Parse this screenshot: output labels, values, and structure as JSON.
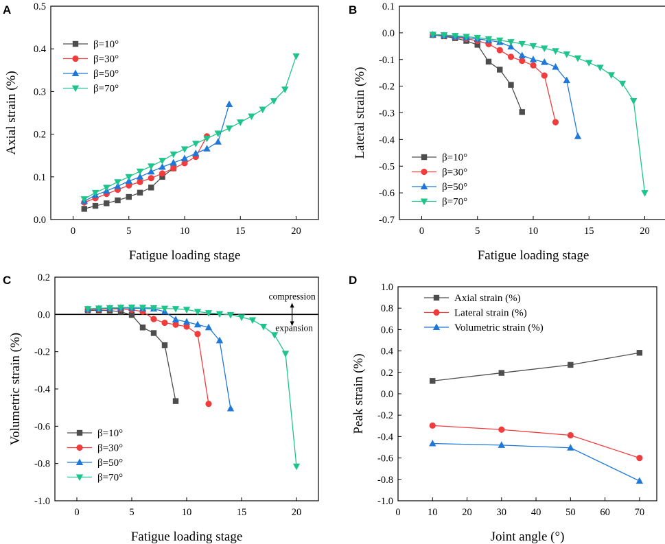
{
  "chart_data": [
    {
      "id": "A",
      "panel_label": "A",
      "type": "line",
      "xlabel": "Fatigue loading stage",
      "ylabel": "Axial strain (%)",
      "xlim": [
        -2,
        22
      ],
      "ylim": [
        0.0,
        0.5
      ],
      "xticks": [
        0,
        5,
        10,
        15,
        20
      ],
      "yticks": [
        0.0,
        0.1,
        0.2,
        0.3,
        0.4,
        0.5
      ],
      "ytick_decimals": 1,
      "legend_position": "upper-left",
      "series": [
        {
          "name": "β=10°",
          "color": "#4d4d4d",
          "marker": "square",
          "x": [
            1,
            2,
            3,
            4,
            5,
            6,
            7,
            8,
            9
          ],
          "y": [
            0.025,
            0.032,
            0.038,
            0.045,
            0.053,
            0.063,
            0.075,
            0.1,
            0.12
          ]
        },
        {
          "name": "β=30°",
          "color": "#f03c3c",
          "marker": "circle",
          "x": [
            1,
            2,
            3,
            4,
            5,
            6,
            7,
            8,
            9,
            10,
            11,
            12
          ],
          "y": [
            0.04,
            0.05,
            0.06,
            0.07,
            0.08,
            0.088,
            0.097,
            0.108,
            0.12,
            0.132,
            0.147,
            0.195
          ]
        },
        {
          "name": "β=50°",
          "color": "#1f78d8",
          "marker": "triangle-up",
          "x": [
            1,
            2,
            3,
            4,
            5,
            6,
            7,
            8,
            9,
            10,
            11,
            12,
            13,
            14
          ],
          "y": [
            0.043,
            0.057,
            0.067,
            0.078,
            0.09,
            0.1,
            0.112,
            0.123,
            0.133,
            0.143,
            0.155,
            0.166,
            0.182,
            0.27
          ]
        },
        {
          "name": "β=70°",
          "color": "#1ec48a",
          "marker": "triangle-down",
          "x": [
            1,
            2,
            3,
            4,
            5,
            6,
            7,
            8,
            9,
            10,
            11,
            12,
            13,
            14,
            15,
            16,
            17,
            18,
            19,
            20
          ],
          "y": [
            0.048,
            0.063,
            0.075,
            0.088,
            0.1,
            0.113,
            0.125,
            0.138,
            0.153,
            0.165,
            0.178,
            0.19,
            0.202,
            0.214,
            0.228,
            0.242,
            0.258,
            0.278,
            0.305,
            0.383
          ]
        }
      ]
    },
    {
      "id": "B",
      "panel_label": "B",
      "type": "line",
      "xlabel": "Fatigue loading stage",
      "ylabel": "Lateral strain (%)",
      "xlim": [
        -2,
        22
      ],
      "ylim": [
        -0.7,
        0.1
      ],
      "xticks": [
        0,
        5,
        10,
        15,
        20
      ],
      "yticks": [
        0.1,
        0.0,
        -0.1,
        -0.2,
        -0.3,
        -0.4,
        -0.5,
        -0.6,
        -0.7
      ],
      "ytick_decimals": 1,
      "legend_position": "lower-left",
      "series": [
        {
          "name": "β=10°",
          "color": "#4d4d4d",
          "marker": "square",
          "x": [
            1,
            2,
            3,
            4,
            5,
            6,
            7,
            8,
            9
          ],
          "y": [
            -0.008,
            -0.013,
            -0.02,
            -0.03,
            -0.045,
            -0.108,
            -0.138,
            -0.195,
            -0.297
          ]
        },
        {
          "name": "β=30°",
          "color": "#f03c3c",
          "marker": "circle",
          "x": [
            1,
            2,
            3,
            4,
            5,
            6,
            7,
            8,
            9,
            10,
            11,
            12
          ],
          "y": [
            -0.008,
            -0.011,
            -0.016,
            -0.022,
            -0.03,
            -0.042,
            -0.065,
            -0.09,
            -0.105,
            -0.122,
            -0.16,
            -0.335
          ]
        },
        {
          "name": "β=50°",
          "color": "#1f78d8",
          "marker": "triangle-up",
          "x": [
            1,
            2,
            3,
            4,
            5,
            6,
            7,
            8,
            9,
            10,
            11,
            12,
            13,
            14
          ],
          "y": [
            -0.007,
            -0.01,
            -0.014,
            -0.018,
            -0.023,
            -0.028,
            -0.035,
            -0.052,
            -0.085,
            -0.1,
            -0.11,
            -0.128,
            -0.178,
            -0.388
          ]
        },
        {
          "name": "β=70°",
          "color": "#1ec48a",
          "marker": "triangle-down",
          "x": [
            1,
            2,
            3,
            4,
            5,
            6,
            7,
            8,
            9,
            10,
            11,
            12,
            13,
            14,
            15,
            16,
            17,
            18,
            19,
            20
          ],
          "y": [
            -0.006,
            -0.008,
            -0.011,
            -0.014,
            -0.018,
            -0.023,
            -0.028,
            -0.034,
            -0.041,
            -0.049,
            -0.058,
            -0.068,
            -0.08,
            -0.095,
            -0.112,
            -0.13,
            -0.158,
            -0.19,
            -0.255,
            -0.6
          ]
        }
      ]
    },
    {
      "id": "C",
      "panel_label": "C",
      "type": "line",
      "xlabel": "Fatigue loading stage",
      "ylabel": "Volumetric strain (%)",
      "xlim": [
        -2,
        22
      ],
      "ylim": [
        -1.0,
        0.2
      ],
      "xticks": [
        0,
        5,
        10,
        15,
        20
      ],
      "yticks": [
        0.2,
        0.0,
        -0.2,
        -0.4,
        -0.6,
        -0.8,
        -1.0
      ],
      "ytick_decimals": 1,
      "zero_line": true,
      "legend_position": "lower-left",
      "annotations": {
        "up": "compression",
        "down": "expansion",
        "arrow_x": 19.6
      },
      "series": [
        {
          "name": "β=10°",
          "color": "#4d4d4d",
          "marker": "square",
          "x": [
            1,
            2,
            3,
            4,
            5,
            6,
            7,
            8,
            9
          ],
          "y": [
            0.022,
            0.022,
            0.021,
            0.014,
            -0.003,
            -0.07,
            -0.1,
            -0.165,
            -0.465
          ]
        },
        {
          "name": "β=30°",
          "color": "#f03c3c",
          "marker": "circle",
          "x": [
            1,
            2,
            3,
            4,
            5,
            6,
            7,
            8,
            9,
            10,
            11,
            12
          ],
          "y": [
            0.025,
            0.028,
            0.03,
            0.03,
            0.025,
            0.015,
            -0.025,
            -0.045,
            -0.055,
            -0.065,
            -0.105,
            -0.48
          ]
        },
        {
          "name": "β=50°",
          "color": "#1f78d8",
          "marker": "triangle-up",
          "x": [
            1,
            2,
            3,
            4,
            5,
            6,
            7,
            8,
            9,
            10,
            11,
            12,
            13,
            14
          ],
          "y": [
            0.028,
            0.031,
            0.033,
            0.035,
            0.034,
            0.032,
            0.03,
            0.015,
            -0.028,
            -0.04,
            -0.055,
            -0.07,
            -0.14,
            -0.505
          ]
        },
        {
          "name": "β=70°",
          "color": "#1ec48a",
          "marker": "triangle-down",
          "x": [
            1,
            2,
            3,
            4,
            5,
            6,
            7,
            8,
            9,
            10,
            11,
            12,
            13,
            14,
            15,
            16,
            17,
            18,
            19,
            20
          ],
          "y": [
            0.03,
            0.033,
            0.035,
            0.037,
            0.038,
            0.037,
            0.035,
            0.032,
            0.03,
            0.026,
            0.015,
            0.008,
            0.003,
            -0.002,
            -0.015,
            -0.03,
            -0.065,
            -0.11,
            -0.21,
            -0.815
          ]
        }
      ]
    },
    {
      "id": "D",
      "panel_label": "D",
      "type": "line",
      "xlabel": "Joint angle (°)",
      "ylabel": "Peak strain (%)",
      "xlim": [
        0,
        75
      ],
      "ylim": [
        -1.0,
        1.0
      ],
      "xticks": [
        0,
        10,
        20,
        30,
        40,
        50,
        60,
        70
      ],
      "yticks": [
        1.0,
        0.8,
        0.6,
        0.4,
        0.2,
        0.0,
        -0.2,
        -0.4,
        -0.6,
        -0.8,
        -1.0
      ],
      "ytick_decimals": 1,
      "legend_position": "top-center",
      "series": [
        {
          "name": "Axial strain (%)",
          "color": "#4d4d4d",
          "marker": "square",
          "x": [
            10,
            30,
            50,
            70
          ],
          "y": [
            0.12,
            0.195,
            0.27,
            0.383
          ]
        },
        {
          "name": "Lateral strain (%)",
          "color": "#f03c3c",
          "marker": "circle",
          "x": [
            10,
            30,
            50,
            70
          ],
          "y": [
            -0.297,
            -0.335,
            -0.388,
            -0.6
          ]
        },
        {
          "name": "Volumetric strain (%)",
          "color": "#1f78d8",
          "marker": "triangle-up",
          "x": [
            10,
            30,
            50,
            70
          ],
          "y": [
            -0.465,
            -0.48,
            -0.505,
            -0.815
          ]
        }
      ]
    }
  ]
}
